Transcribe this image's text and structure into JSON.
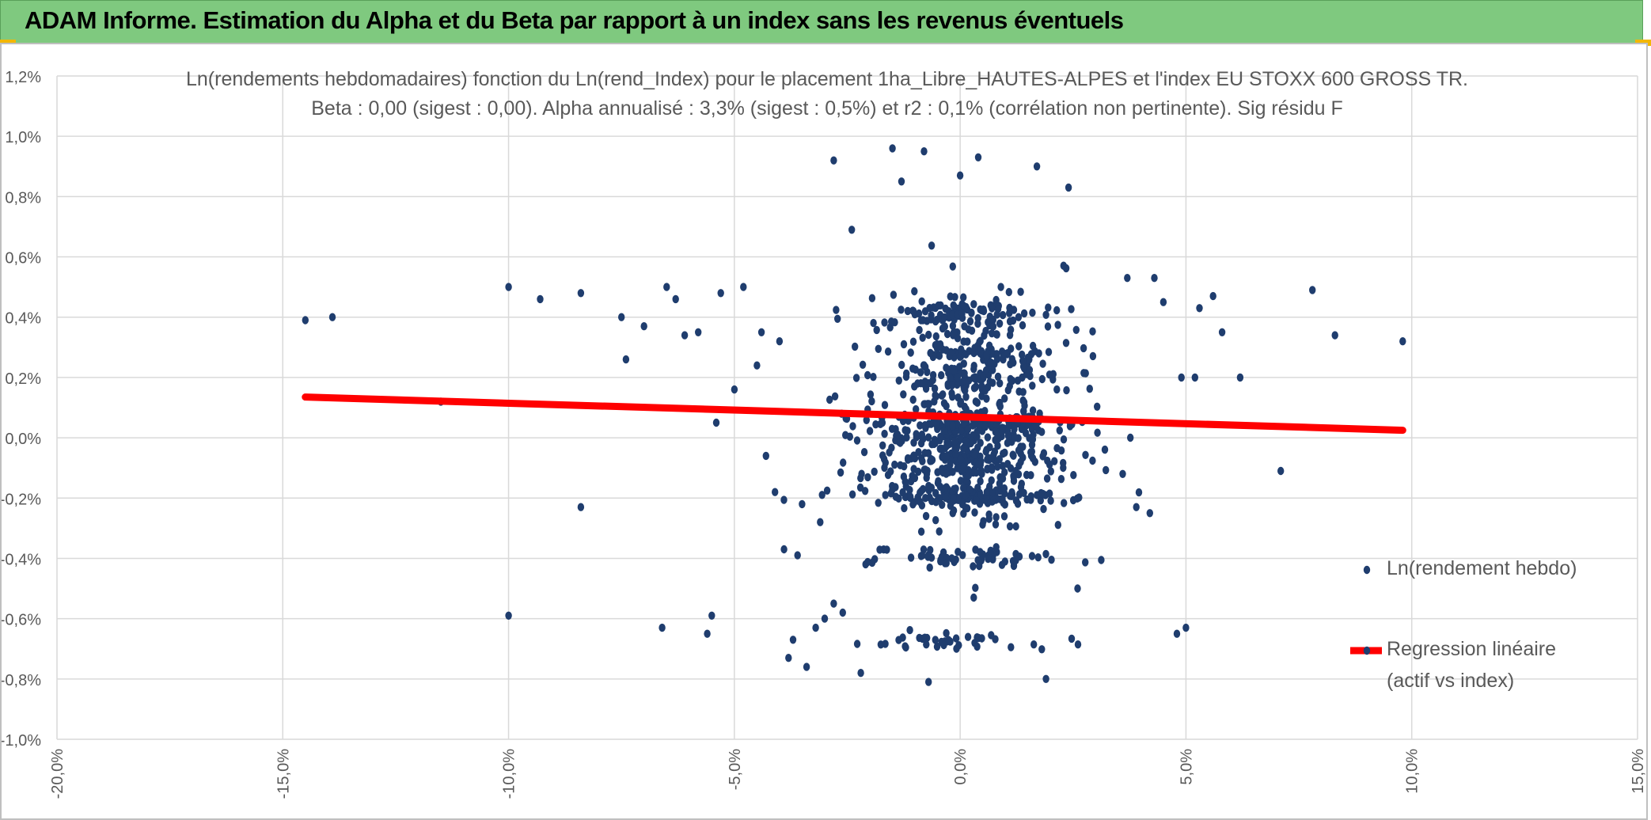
{
  "header": {
    "title": "ADAM Informe. Estimation du Alpha et du Beta par rapport à un index sans les revenus éventuels"
  },
  "colors": {
    "banner": "#7fc97f",
    "accent": "#f2b705",
    "points": "#1f3d6e",
    "regression": "#ff0000",
    "grid": "#d9d9d9",
    "text": "#595959"
  },
  "chart_data": {
    "type": "scatter",
    "title_line1": "Ln(rendements hebdomadaires) fonction du Ln(rend_Index) pour le placement 1ha_Libre_HAUTES-ALPES et l'index EU STOXX 600 GROSS TR.",
    "title_line2": "Beta : 0,00 (sigest : 0,00). Alpha annualisé : 3,3% (sigest : 0,5%) et r2 : 0,1% (corrélation non pertinente). Sig résidu F",
    "xlabel": "",
    "ylabel": "",
    "xlim": [
      -20,
      15
    ],
    "ylim": [
      -1.0,
      1.2
    ],
    "x_ticks": [
      -20,
      -15,
      -10,
      -5,
      0,
      5,
      10,
      15
    ],
    "y_ticks": [
      -1.0,
      -0.8,
      -0.6,
      -0.4,
      -0.2,
      0.0,
      0.2,
      0.4,
      0.6,
      0.8,
      1.0,
      1.2
    ],
    "x_tick_labels": [
      "-20,0%",
      "-15,0%",
      "-10,0%",
      "-5,0%",
      "0,0%",
      "5,0%",
      "10,0%",
      "15,0%"
    ],
    "y_tick_labels": [
      "-1,0%",
      "-0,8%",
      "-0,6%",
      "-0,4%",
      "-0,2%",
      "0,0%",
      "0,2%",
      "0,4%",
      "0,6%",
      "0,8%",
      "1,0%",
      "1,2%"
    ],
    "grid": true,
    "legend_position": "right",
    "series": [
      {
        "name": "Ln(rendement hebdo)",
        "kind": "scatter",
        "points": [
          [
            -14.5,
            0.39
          ],
          [
            -13.9,
            0.4
          ],
          [
            -11.5,
            0.12
          ],
          [
            -10.0,
            0.5
          ],
          [
            -9.3,
            0.46
          ],
          [
            -8.4,
            0.48
          ],
          [
            -8.4,
            -0.23
          ],
          [
            -10.0,
            -0.59
          ],
          [
            -7.5,
            0.4
          ],
          [
            -7.4,
            0.26
          ],
          [
            -7.0,
            0.37
          ],
          [
            -6.6,
            -0.63
          ],
          [
            -6.5,
            0.5
          ],
          [
            -6.3,
            0.46
          ],
          [
            -6.1,
            0.34
          ],
          [
            -5.8,
            0.35
          ],
          [
            -5.6,
            -0.65
          ],
          [
            -5.5,
            -0.59
          ],
          [
            -5.4,
            0.05
          ],
          [
            -5.3,
            0.48
          ],
          [
            -5.0,
            0.16
          ],
          [
            -4.8,
            0.5
          ],
          [
            -4.5,
            0.24
          ],
          [
            -4.4,
            0.35
          ],
          [
            -4.3,
            -0.06
          ],
          [
            -4.1,
            -0.18
          ],
          [
            -4.0,
            0.32
          ],
          [
            -3.9,
            -0.37
          ],
          [
            -3.8,
            -0.73
          ],
          [
            -3.7,
            -0.67
          ],
          [
            -3.6,
            -0.39
          ],
          [
            -3.5,
            -0.22
          ],
          [
            -3.4,
            -0.76
          ],
          [
            -3.2,
            -0.63
          ],
          [
            -3.1,
            -0.28
          ],
          [
            -3.0,
            -0.6
          ],
          [
            -2.8,
            -0.55
          ],
          [
            -2.6,
            -0.58
          ],
          [
            -2.4,
            0.69
          ],
          [
            -2.8,
            0.92
          ],
          [
            -1.5,
            0.96
          ],
          [
            -0.8,
            0.95
          ],
          [
            0.4,
            0.93
          ],
          [
            1.7,
            0.9
          ],
          [
            2.4,
            0.83
          ],
          [
            -1.3,
            0.85
          ],
          [
            0.0,
            0.87
          ],
          [
            0.3,
            -0.53
          ],
          [
            1.9,
            -0.8
          ],
          [
            -0.7,
            -0.81
          ],
          [
            -2.2,
            -0.78
          ],
          [
            2.6,
            -0.5
          ],
          [
            4.8,
            -0.65
          ],
          [
            5.0,
            -0.63
          ],
          [
            7.1,
            -0.11
          ],
          [
            7.8,
            0.49
          ],
          [
            8.3,
            0.34
          ],
          [
            9.8,
            0.32
          ],
          [
            6.2,
            0.2
          ],
          [
            5.8,
            0.35
          ],
          [
            5.6,
            0.47
          ],
          [
            5.3,
            0.43
          ],
          [
            4.5,
            0.45
          ],
          [
            4.3,
            0.53
          ],
          [
            3.7,
            0.53
          ],
          [
            4.9,
            0.2
          ],
          [
            4.2,
            -0.25
          ],
          [
            3.9,
            -0.23
          ],
          [
            3.6,
            -0.12
          ],
          [
            5.2,
            0.2
          ]
        ]
      },
      {
        "name": "Regression linéaire (actif vs index)",
        "kind": "line",
        "x": [
          -14.5,
          9.8
        ],
        "y": [
          0.135,
          0.025
        ]
      }
    ],
    "legend": [
      "Ln(rendement hebdo)",
      "Regression linéaire",
      "(actif vs index)"
    ]
  }
}
